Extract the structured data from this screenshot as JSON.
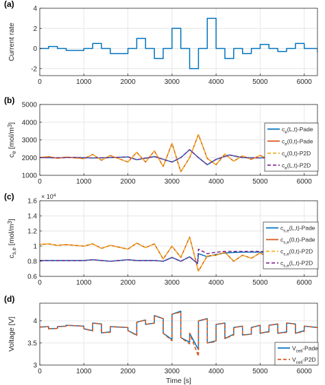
{
  "colors": {
    "blue": "#0072BD",
    "orange": "#D95319",
    "yellow": "#EDB120",
    "purple": "#7E2F8E",
    "grid": "#e6e6e6",
    "axis": "#262626"
  },
  "chart_data": [
    {
      "id": "a",
      "type": "line",
      "panel_label": "(a)",
      "ylabel": "Current rate",
      "xlabel": "",
      "xlim": [
        0,
        6300
      ],
      "ylim": [
        -2.7,
        4
      ],
      "xticks": [
        0,
        1000,
        2000,
        3000,
        4000,
        5000,
        6000
      ],
      "yticks": [
        -2,
        0,
        2,
        4
      ],
      "grid": true,
      "series": [
        {
          "step": true,
          "style": "solid",
          "color": "#0072BD",
          "x": [
            0,
            200,
            400,
            600,
            1000,
            1200,
            1400,
            1600,
            2000,
            2200,
            2400,
            2600,
            2800,
            3000,
            3200,
            3400,
            3600,
            3800,
            4000,
            4200,
            4400,
            4600,
            4800,
            5000,
            5200,
            5400,
            5600,
            5800,
            6000,
            6300
          ],
          "y": [
            0,
            0.2,
            0,
            -0.2,
            0,
            0.5,
            0,
            -0.5,
            0,
            1,
            0,
            -1,
            0,
            2,
            0,
            -2,
            0,
            3,
            0,
            -1,
            0,
            -0.5,
            0,
            0.4,
            0,
            -0.3,
            0,
            0.5,
            0,
            -0.4
          ]
        }
      ]
    },
    {
      "id": "b",
      "type": "line",
      "panel_label": "(b)",
      "ylabel": "c_e [mol/m^3]",
      "xlabel": "",
      "xlim": [
        0,
        6300
      ],
      "ylim": [
        1000,
        5000
      ],
      "xticks": [
        0,
        1000,
        2000,
        3000,
        4000,
        5000,
        6000
      ],
      "yticks": [
        1000,
        2000,
        3000,
        4000,
        5000
      ],
      "grid": true,
      "legend": "top-right",
      "series": [
        {
          "name": "c_e(L,t)-Pade",
          "color": "#0072BD",
          "style": "solid",
          "x": [
            0,
            400,
            800,
            1200,
            1600,
            2000,
            2200,
            2600,
            3000,
            3200,
            3400,
            3600,
            3800,
            4000,
            4300,
            4600,
            5000,
            5400,
            5800,
            6300
          ],
          "y": [
            2000,
            1990,
            2010,
            1980,
            2000,
            2040,
            1880,
            2060,
            1750,
            2000,
            2450,
            2000,
            1600,
            1900,
            2150,
            2000,
            1980,
            2040,
            1990,
            2020
          ]
        },
        {
          "name": "c_e(0,t)-Pade",
          "color": "#D95319",
          "style": "solid",
          "x": [
            0,
            200,
            400,
            600,
            1000,
            1200,
            1400,
            1600,
            2000,
            2200,
            2400,
            2600,
            2800,
            3000,
            3200,
            3400,
            3600,
            3800,
            4000,
            4200,
            4400,
            4600,
            4800,
            5000,
            5200,
            5400,
            5600,
            5800,
            6000,
            6300
          ],
          "y": [
            2000,
            2060,
            1960,
            2030,
            1940,
            2180,
            1850,
            2120,
            1750,
            2300,
            1750,
            2380,
            1500,
            2800,
            1200,
            2000,
            3300,
            1950,
            1600,
            2200,
            1800,
            2100,
            1900,
            2120,
            1920,
            2050,
            1950,
            2100,
            1900,
            2000
          ]
        },
        {
          "name": "c_e(0,t)-P2D",
          "color": "#EDB120",
          "style": "dashed",
          "x": [
            0,
            200,
            400,
            600,
            1000,
            1200,
            1400,
            1600,
            2000,
            2200,
            2400,
            2600,
            2800,
            3000,
            3200,
            3400,
            3600,
            3800,
            4000,
            4200,
            4400,
            4600,
            4800,
            5000,
            5200,
            5400,
            5600,
            5800,
            6000,
            6300
          ],
          "y": [
            2000,
            2060,
            1960,
            2030,
            1940,
            2180,
            1850,
            2120,
            1750,
            2300,
            1750,
            2380,
            1500,
            2800,
            1200,
            2000,
            3300,
            1950,
            1600,
            2200,
            1800,
            2100,
            1900,
            2120,
            1920,
            2050,
            1950,
            2100,
            1900,
            2000
          ]
        },
        {
          "name": "c_e(L,t)-P2D",
          "color": "#7E2F8E",
          "style": "dashed",
          "x": [
            0,
            400,
            800,
            1200,
            1600,
            2000,
            2200,
            2600,
            3000,
            3200,
            3400,
            3600,
            3800,
            4000,
            4300,
            4600,
            5000,
            5400,
            5800,
            6300
          ],
          "y": [
            2000,
            1990,
            2010,
            1980,
            2000,
            2040,
            1880,
            2060,
            1750,
            2000,
            2450,
            2000,
            1600,
            1900,
            2150,
            2000,
            1980,
            2040,
            1990,
            2020
          ]
        }
      ]
    },
    {
      "id": "c",
      "type": "line",
      "panel_label": "(c)",
      "ylabel": "c_s,e [mol/m^3]",
      "xlabel": "",
      "exponent": "× 10^4",
      "xlim": [
        0,
        6300
      ],
      "ylim": [
        0.6,
        1.6
      ],
      "xticks": [
        0,
        1000,
        2000,
        3000,
        4000,
        5000,
        6000
      ],
      "yticks": [
        0.6,
        0.8,
        1,
        1.2,
        1.4,
        1.6
      ],
      "ytick_labels": [
        "0.6",
        "0.8",
        "1",
        "1.2",
        "1.4",
        "1.6"
      ],
      "grid": true,
      "legend": "top-right",
      "series": [
        {
          "name": "c_s,e(L,t)-Pade",
          "color": "#0072BD",
          "style": "solid",
          "x": [
            0,
            600,
            1000,
            1200,
            1600,
            2000,
            2200,
            2600,
            2800,
            3000,
            3200,
            3400,
            3580,
            3600,
            3800,
            4000,
            4200,
            4600,
            5000,
            5400,
            5800,
            6300
          ],
          "y": [
            0.81,
            0.81,
            0.81,
            0.82,
            0.8,
            0.82,
            0.81,
            0.81,
            0.8,
            0.85,
            0.8,
            0.86,
            0.77,
            0.9,
            0.86,
            0.89,
            0.91,
            0.92,
            0.92,
            0.91,
            0.9,
            0.92
          ]
        },
        {
          "name": "c_s,e(0,t)-Pade",
          "color": "#D95319",
          "style": "solid",
          "x": [
            0,
            200,
            400,
            600,
            1000,
            1200,
            1400,
            1600,
            2000,
            2200,
            2400,
            2600,
            2800,
            3000,
            3200,
            3400,
            3600,
            3800,
            4000,
            4200,
            4400,
            4600,
            4800,
            5000,
            5200,
            5400,
            5600,
            5800,
            6000,
            6300
          ],
          "y": [
            1.02,
            1.03,
            1.01,
            1.02,
            1.0,
            1.03,
            0.97,
            1.01,
            0.96,
            1.04,
            0.98,
            1.03,
            0.83,
            1.0,
            0.85,
            1.12,
            0.67,
            0.87,
            0.88,
            0.92,
            0.8,
            0.88,
            0.84,
            0.91,
            0.85,
            0.92,
            0.86,
            0.93,
            0.86,
            0.92
          ]
        },
        {
          "name": "c_s,e(0,t)-P2D",
          "color": "#EDB120",
          "style": "dashed",
          "x": [
            0,
            200,
            400,
            600,
            1000,
            1200,
            1400,
            1600,
            2000,
            2200,
            2400,
            2600,
            2800,
            3000,
            3200,
            3400,
            3600,
            3800,
            4000,
            4200,
            4400,
            4600,
            4800,
            5000,
            5200,
            5400,
            5600,
            5800,
            6000,
            6300
          ],
          "y": [
            1.02,
            1.03,
            1.01,
            1.02,
            1.0,
            1.03,
            0.97,
            1.01,
            0.96,
            1.04,
            0.98,
            1.03,
            0.83,
            1.0,
            0.85,
            1.12,
            0.67,
            0.87,
            0.88,
            0.92,
            0.8,
            0.88,
            0.84,
            0.91,
            0.85,
            0.92,
            0.86,
            0.93,
            0.86,
            0.92
          ]
        },
        {
          "name": "c_s,e(L,t)-P2D",
          "color": "#7E2F8E",
          "style": "dashed",
          "x": [
            0,
            600,
            1000,
            1200,
            1600,
            2000,
            2200,
            2600,
            2800,
            3000,
            3200,
            3400,
            3580,
            3600,
            3800,
            4000,
            4200,
            4600,
            5000,
            5400,
            5800,
            6300
          ],
          "y": [
            0.81,
            0.81,
            0.81,
            0.82,
            0.8,
            0.82,
            0.81,
            0.81,
            0.8,
            0.85,
            0.8,
            0.86,
            0.77,
            0.96,
            0.9,
            0.92,
            0.93,
            0.93,
            0.93,
            0.92,
            0.91,
            0.93
          ]
        }
      ]
    },
    {
      "id": "d",
      "type": "line",
      "panel_label": "(d)",
      "ylabel": "Voltage [V]",
      "xlabel": "Time [s]",
      "xlim": [
        0,
        6300
      ],
      "ylim": [
        3,
        4.4
      ],
      "xticks": [
        0,
        1000,
        2000,
        3000,
        4000,
        5000,
        6000
      ],
      "yticks": [
        3,
        3.5,
        4
      ],
      "grid": true,
      "legend": "bottom-right",
      "series": [
        {
          "name": "V_cell-Pade",
          "color": "#0072BD",
          "style": "solid",
          "x": [
            0,
            200,
            200,
            400,
            400,
            600,
            600,
            1000,
            1000,
            1200,
            1200,
            1400,
            1400,
            1600,
            1600,
            2000,
            2000,
            2200,
            2200,
            2400,
            2400,
            2600,
            2600,
            2800,
            2800,
            3000,
            3000,
            3200,
            3200,
            3400,
            3400,
            3600,
            3600,
            3800,
            3800,
            4000,
            4000,
            4200,
            4200,
            4400,
            4400,
            4600,
            4600,
            4800,
            4800,
            5000,
            5000,
            5200,
            5200,
            5400,
            5400,
            5600,
            5600,
            5800,
            5800,
            6000,
            6000,
            6300
          ],
          "y": [
            3.86,
            3.87,
            3.82,
            3.83,
            3.87,
            3.88,
            3.9,
            3.88,
            3.82,
            3.78,
            3.95,
            3.93,
            3.73,
            3.75,
            3.87,
            3.85,
            3.78,
            3.68,
            3.97,
            4.02,
            3.92,
            3.95,
            4.12,
            4.05,
            3.72,
            3.58,
            4.15,
            4.22,
            3.62,
            3.52,
            3.72,
            3.35,
            4.0,
            4.05,
            3.5,
            3.55,
            3.92,
            3.95,
            3.6,
            3.7,
            3.85,
            3.88,
            3.68,
            3.7,
            3.85,
            3.9,
            3.72,
            3.76,
            3.9,
            3.93,
            3.72,
            3.75,
            3.95,
            3.93,
            3.72,
            3.78,
            3.88,
            3.85
          ]
        },
        {
          "name": "V_cell-P2D",
          "color": "#D95319",
          "style": "dashed",
          "x": [
            0,
            200,
            200,
            400,
            400,
            600,
            600,
            1000,
            1000,
            1200,
            1200,
            1400,
            1400,
            1600,
            1600,
            2000,
            2000,
            2200,
            2200,
            2400,
            2400,
            2600,
            2600,
            2800,
            2800,
            3000,
            3000,
            3200,
            3200,
            3400,
            3400,
            3600,
            3600,
            3800,
            3800,
            4000,
            4000,
            4200,
            4200,
            4400,
            4400,
            4600,
            4600,
            4800,
            4800,
            5000,
            5000,
            5200,
            5200,
            5400,
            5400,
            5600,
            5600,
            5800,
            5800,
            6000,
            6000,
            6300
          ],
          "y": [
            3.86,
            3.87,
            3.82,
            3.83,
            3.87,
            3.88,
            3.9,
            3.88,
            3.82,
            3.77,
            3.95,
            3.93,
            3.73,
            3.74,
            3.87,
            3.85,
            3.78,
            3.67,
            3.97,
            4.02,
            3.92,
            3.95,
            4.12,
            4.05,
            3.72,
            3.55,
            4.15,
            4.2,
            3.62,
            3.48,
            3.72,
            3.2,
            4.0,
            4.05,
            3.5,
            3.53,
            3.92,
            3.95,
            3.6,
            3.68,
            3.85,
            3.88,
            3.68,
            3.7,
            3.85,
            3.9,
            3.72,
            3.75,
            3.9,
            3.93,
            3.72,
            3.74,
            3.95,
            3.93,
            3.72,
            3.76,
            3.88,
            3.85
          ]
        }
      ]
    }
  ]
}
